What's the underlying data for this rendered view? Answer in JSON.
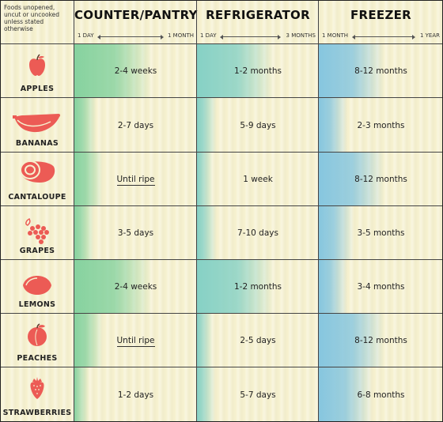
{
  "note": "Foods unopened, uncut or uncooked unless stated otherwise",
  "columns": [
    {
      "title": "COUNTER/PANTRY",
      "scale_min": "1 DAY",
      "scale_max": "1 MONTH"
    },
    {
      "title": "REFRIGERATOR",
      "scale_min": "1 DAY",
      "scale_max": "3 MONTHS"
    },
    {
      "title": "FREEZER",
      "scale_min": "1 MONTH",
      "scale_max": "1 YEAR"
    }
  ],
  "colors": {
    "icon": "#ec5b55",
    "counter": "#86d29f",
    "fridge": "#86d1c5",
    "freezer": "#86c6df",
    "background": "#f6f1cf"
  },
  "rows": [
    {
      "name": "APPLES",
      "icon": "apple-icon",
      "counter": "2-4 weeks",
      "fridge": "1-2 months",
      "freezer": "8-12 months",
      "counter_level": 0.55,
      "fridge_level": 0.55,
      "freezer_level": 0.45
    },
    {
      "name": "BANANAS",
      "icon": "banana-icon",
      "counter": "2-7 days",
      "fridge": "5-9 days",
      "freezer": "2-3 months",
      "counter_level": 0.1,
      "fridge_level": 0.08,
      "freezer_level": 0.15
    },
    {
      "name": "CANTALOUPE",
      "icon": "cantaloupe-icon",
      "counter": "Until ripe",
      "fridge": "1 week",
      "freezer": "8-12 months",
      "counter_level": 0.15,
      "fridge_level": 0.05,
      "freezer_level": 0.45
    },
    {
      "name": "GRAPES",
      "icon": "grapes-icon",
      "counter": "3-5 days",
      "fridge": "7-10 days",
      "freezer": "3-5 months",
      "counter_level": 0.08,
      "fridge_level": 0.08,
      "freezer_level": 0.2
    },
    {
      "name": "LEMONS",
      "icon": "lemon-icon",
      "counter": "2-4 weeks",
      "fridge": "1-2 months",
      "freezer": "3-4 months",
      "counter_level": 0.55,
      "fridge_level": 0.55,
      "freezer_level": 0.15
    },
    {
      "name": "PEACHES",
      "icon": "peach-icon",
      "counter": "Until ripe",
      "fridge": "2-5 days",
      "freezer": "8-12 months",
      "counter_level": 0.15,
      "fridge_level": 0.05,
      "freezer_level": 0.45
    },
    {
      "name": "STRAWBERRIES",
      "icon": "strawberry-icon",
      "counter": "1-2 days",
      "fridge": "5-7 days",
      "freezer": "6-8 months",
      "counter_level": 0.04,
      "fridge_level": 0.07,
      "freezer_level": 0.35
    }
  ]
}
